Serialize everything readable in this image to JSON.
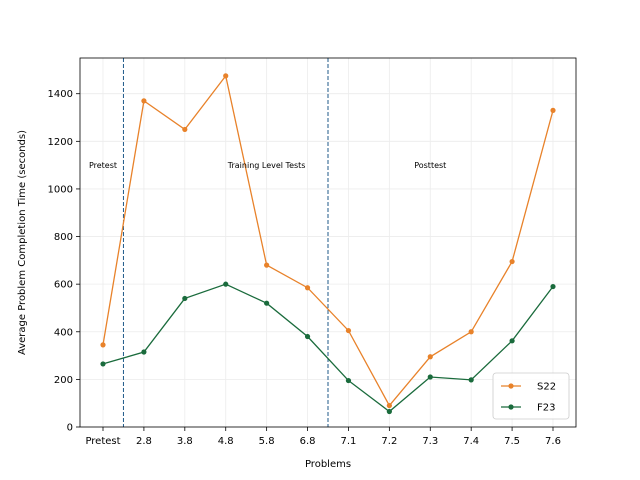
{
  "chart_data": {
    "type": "line",
    "title": "",
    "xlabel": "Problems",
    "ylabel": "Average Problem Completion Time (seconds)",
    "categories": [
      "Pretest",
      "2.8",
      "3.8",
      "4.8",
      "5.8",
      "6.8",
      "7.1",
      "7.2",
      "7.3",
      "7.4",
      "7.5",
      "7.6"
    ],
    "ylim": [
      0,
      1550
    ],
    "yticks": [
      0,
      200,
      400,
      600,
      800,
      1000,
      1200,
      1400
    ],
    "grid": true,
    "legend_position": "lower right",
    "series": [
      {
        "name": "S22",
        "color": "#e8822a",
        "values": [
          345,
          1370,
          1250,
          1475,
          680,
          585,
          405,
          90,
          295,
          400,
          695,
          1330
        ]
      },
      {
        "name": "F23",
        "color": "#1a6b3c",
        "values": [
          265,
          315,
          540,
          600,
          520,
          380,
          195,
          65,
          210,
          198,
          362,
          590
        ]
      }
    ],
    "dividers": [
      {
        "after_category": "Pretest",
        "color": "#1f5a8a"
      },
      {
        "after_category": "6.8",
        "color": "#1f5a8a"
      }
    ],
    "regions": [
      {
        "label": "Pretest",
        "at_category": "Pretest"
      },
      {
        "label": "Training Level Tests",
        "at_category": "5.8"
      },
      {
        "label": "Posttest",
        "at_category": "7.3"
      }
    ],
    "region_label_y": 1100
  }
}
